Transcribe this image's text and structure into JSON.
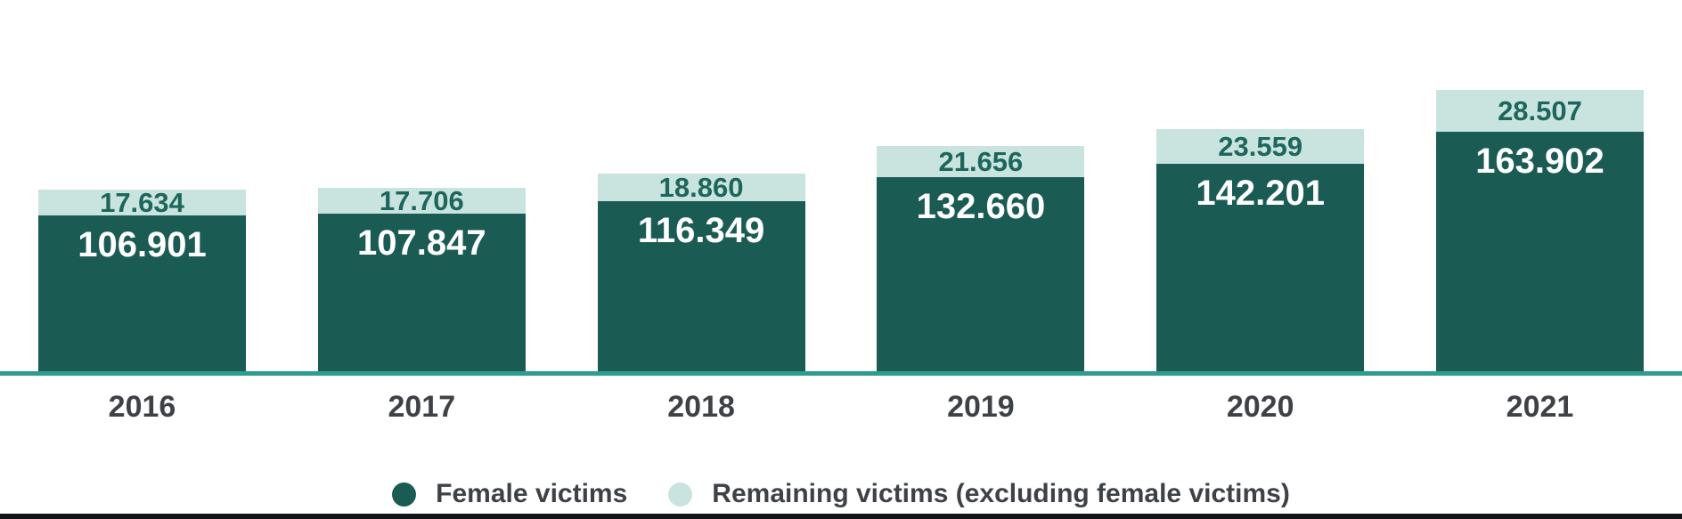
{
  "chart_data": {
    "type": "bar",
    "stacked": true,
    "orientation": "vertical",
    "categories": [
      "2016",
      "2017",
      "2018",
      "2019",
      "2020",
      "2021"
    ],
    "series": [
      {
        "name": "Female victims",
        "values": [
          106901,
          107847,
          116349,
          132660,
          142201,
          163902
        ],
        "value_labels": [
          "106.901",
          "107.847",
          "116.349",
          "132.660",
          "142.201",
          "163.902"
        ],
        "color": "#1A5B53",
        "label_color": "#FFFFFF"
      },
      {
        "name": "Remaining victims (excluding female victims)",
        "values": [
          17634,
          17706,
          18860,
          21656,
          23559,
          28507
        ],
        "value_labels": [
          "17.634",
          "17.706",
          "18.860",
          "21.656",
          "23.559",
          "28.507"
        ],
        "color": "#C9E4DF",
        "label_color": "#1E665C"
      }
    ],
    "title": "",
    "xlabel": "",
    "ylabel": "",
    "ylim": [
      0,
      200000
    ],
    "grid": false,
    "legend_position": "bottom",
    "value_labels_shown": true,
    "xtick_labels": [
      "2016",
      "2017",
      "2018",
      "2019",
      "2020",
      "2021"
    ]
  },
  "legend": {
    "items": [
      {
        "label": "Female victims",
        "color": "#1A5B53"
      },
      {
        "label": "Remaining victims (excluding female victims)",
        "color": "#C9E4DF"
      }
    ]
  },
  "colors": {
    "female_bar": "#1A5B53",
    "remaining_bar": "#C9E4DF",
    "remaining_label_text": "#1E665C",
    "female_label_text": "#FFFFFF",
    "axis_line": "#2F9C92",
    "year_label_text": "#3E4247",
    "legend_text": "#3E4247",
    "bottom_divider": "#121417",
    "background": "#FFFFFF"
  }
}
